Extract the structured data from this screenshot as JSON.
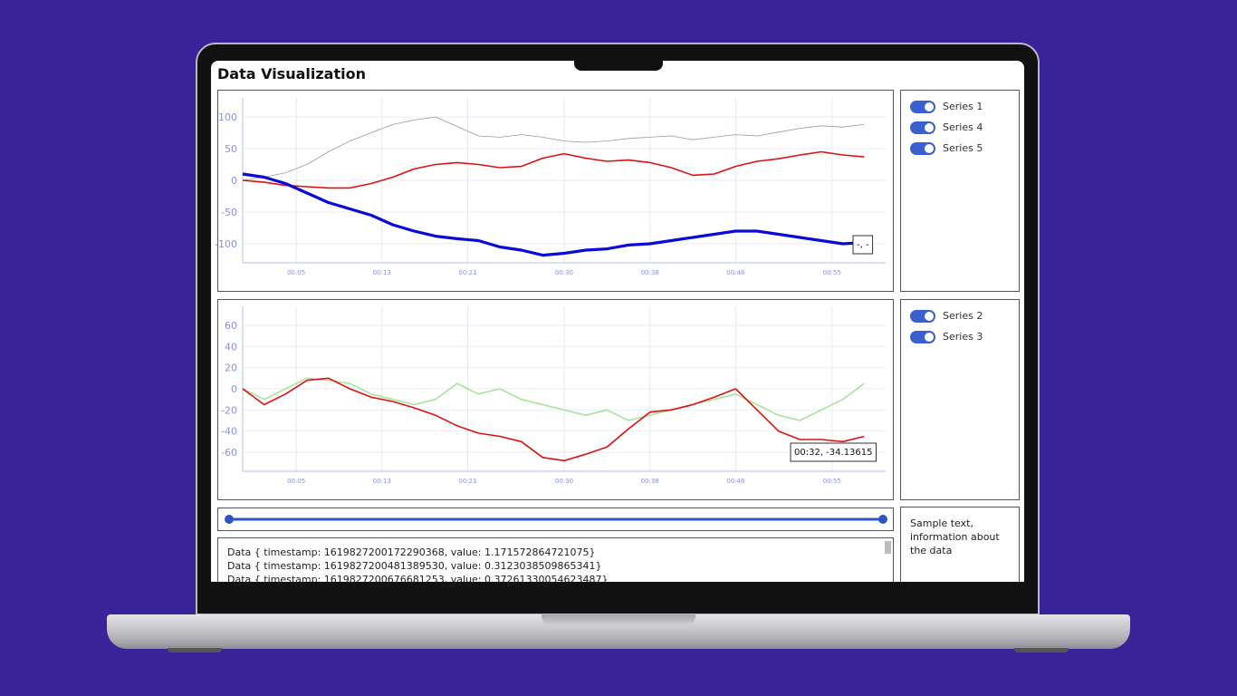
{
  "header": {
    "title": "Data Visualization"
  },
  "chart_data": [
    {
      "type": "line",
      "x": [
        0,
        2,
        4,
        6,
        8,
        10,
        12,
        14,
        16,
        18,
        20,
        22,
        24,
        26,
        28,
        30,
        32,
        34,
        36,
        38,
        40,
        42,
        44,
        46,
        48,
        50,
        52,
        54,
        56,
        58
      ],
      "series": [
        {
          "name": "Series 1",
          "color": "#9a9a9a",
          "values": [
            0,
            5,
            12,
            25,
            45,
            62,
            75,
            88,
            95,
            100,
            85,
            70,
            68,
            72,
            68,
            62,
            60,
            62,
            66,
            68,
            70,
            64,
            68,
            72,
            70,
            76,
            82,
            86,
            84,
            88
          ]
        },
        {
          "name": "Series 4",
          "color": "#e01010",
          "values": [
            0,
            -3,
            -8,
            -10,
            -12,
            -12,
            -5,
            5,
            18,
            25,
            28,
            25,
            20,
            22,
            35,
            42,
            35,
            30,
            32,
            28,
            20,
            8,
            10,
            22,
            30,
            34,
            40,
            45,
            40,
            37
          ]
        },
        {
          "name": "Series 5",
          "color": "#0a0ad8",
          "values": [
            10,
            5,
            -5,
            -20,
            -35,
            -45,
            -55,
            -70,
            -80,
            -88,
            -92,
            -95,
            -105,
            -110,
            -118,
            -115,
            -110,
            -108,
            -102,
            -100,
            -95,
            -90,
            -85,
            -80,
            -80,
            -85,
            -90,
            -95,
            -100,
            -98
          ]
        }
      ],
      "xlim": [
        0,
        60
      ],
      "xticks": [
        {
          "value": 5,
          "label": "00:05"
        },
        {
          "value": 13,
          "label": "00:13"
        },
        {
          "value": 21,
          "label": "00:21"
        },
        {
          "value": 30,
          "label": "00:30"
        },
        {
          "value": 38,
          "label": "00:38"
        },
        {
          "value": 46,
          "label": "00:46"
        },
        {
          "value": 55,
          "label": "00:55"
        }
      ],
      "ylim": [
        -130,
        130
      ],
      "yticks": [
        -100,
        -50,
        0,
        50,
        100
      ],
      "grid": true,
      "tooltip": "-, -"
    },
    {
      "type": "line",
      "x": [
        0,
        2,
        4,
        6,
        8,
        10,
        12,
        14,
        16,
        18,
        20,
        22,
        24,
        26,
        28,
        30,
        32,
        34,
        36,
        38,
        40,
        42,
        44,
        46,
        48,
        50,
        52,
        54,
        56,
        58
      ],
      "series": [
        {
          "name": "Series 2",
          "color": "#a8e49a",
          "values": [
            0,
            -10,
            0,
            10,
            8,
            5,
            -5,
            -10,
            -15,
            -10,
            5,
            -5,
            0,
            -10,
            -15,
            -20,
            -25,
            -20,
            -30,
            -25,
            -20,
            -15,
            -10,
            -5,
            -15,
            -25,
            -30,
            -20,
            -10,
            5
          ]
        },
        {
          "name": "Series 3",
          "color": "#e01010",
          "values": [
            0,
            -15,
            -5,
            8,
            10,
            0,
            -8,
            -12,
            -18,
            -25,
            -35,
            -42,
            -45,
            -50,
            -65,
            -68,
            -62,
            -55,
            -38,
            -22,
            -20,
            -15,
            -8,
            0,
            -20,
            -40,
            -48,
            -48,
            -50,
            -45
          ]
        }
      ],
      "xlim": [
        0,
        60
      ],
      "xticks": [
        {
          "value": 5,
          "label": "00:05"
        },
        {
          "value": 13,
          "label": "00:13"
        },
        {
          "value": 21,
          "label": "00:21"
        },
        {
          "value": 30,
          "label": "00:30"
        },
        {
          "value": 38,
          "label": "00:38"
        },
        {
          "value": 46,
          "label": "00:46"
        },
        {
          "value": 55,
          "label": "00:55"
        }
      ],
      "ylim": [
        -78,
        78
      ],
      "yticks": [
        -60,
        -40,
        -20,
        0,
        20,
        40,
        60
      ],
      "grid": true,
      "tooltip": "00:32, -34.13615"
    }
  ],
  "log": {
    "lines": [
      "Data { timestamp: 1619827200172290368, value: 1.171572864721075}",
      "Data { timestamp: 1619827200481389530, value: 0.3123038509865341}",
      "Data { timestamp: 1619827200676681253, value: 0.37261330054623487}"
    ]
  },
  "info": {
    "text": "Sample text, information about the data"
  }
}
